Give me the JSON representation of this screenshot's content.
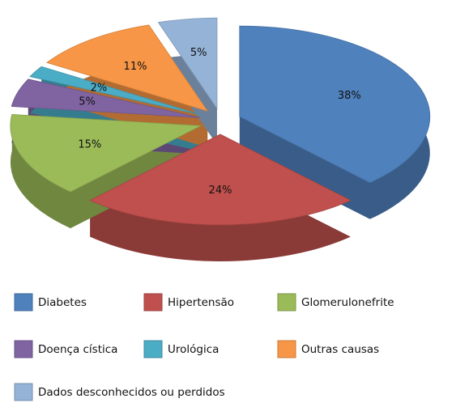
{
  "chart_data": {
    "type": "pie",
    "categories": [
      "Diabetes",
      "Hipertensão",
      "Glomerulonefrite",
      "Doença cística",
      "Urológica",
      "Outras causas",
      "Dados desconhecidos ou perdidos"
    ],
    "values": [
      38,
      24,
      15,
      5,
      2,
      11,
      5
    ],
    "value_labels": [
      "38%",
      "24%",
      "15%",
      "5%",
      "2%",
      "11%",
      "5%"
    ],
    "colors": [
      "#4f81bd",
      "#c0504d",
      "#9bbb59",
      "#8064a2",
      "#4bacc6",
      "#f79646",
      "#95b3d7"
    ],
    "legend": "bottom"
  }
}
